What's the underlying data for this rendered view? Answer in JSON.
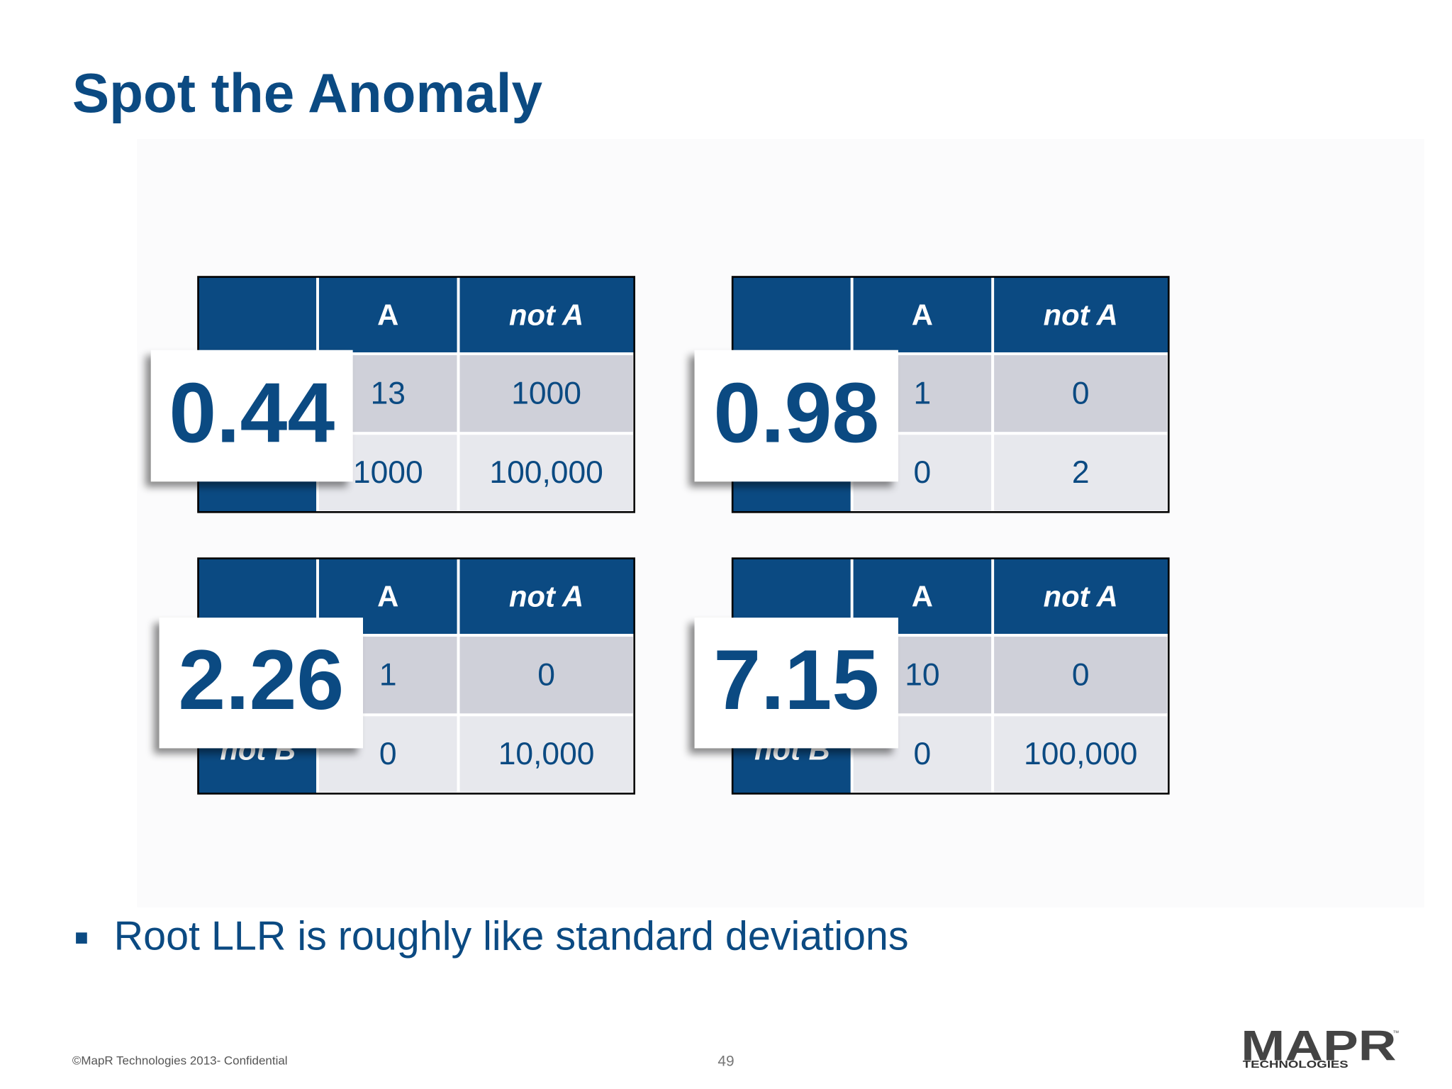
{
  "header": {
    "title": "Spot the Anomaly"
  },
  "tables": [
    {
      "score": "0.44",
      "columns": [
        "A",
        "not A"
      ],
      "rows": [
        [
          "13",
          "1000"
        ],
        [
          "1000",
          "100,000"
        ]
      ]
    },
    {
      "score": "0.98",
      "columns": [
        "A",
        "not A"
      ],
      "rows": [
        [
          "1",
          "0"
        ],
        [
          "0",
          "2"
        ]
      ]
    },
    {
      "score": "2.26",
      "columns": [
        "A",
        "not A"
      ],
      "rows": [
        [
          "1",
          "0"
        ],
        [
          "0",
          "10,000"
        ]
      ],
      "partial_label": "not B"
    },
    {
      "score": "7.15",
      "columns": [
        "A",
        "not A"
      ],
      "rows": [
        [
          "10",
          "0"
        ],
        [
          "0",
          "100,000"
        ]
      ],
      "partial_label": "not B"
    }
  ],
  "bullet": "Root LLR is roughly like standard deviations",
  "footer": {
    "copyright": "©MapR Technologies 2013- Confidential",
    "page": "49"
  },
  "logo": {
    "name": "MAPR",
    "sub": "TECHNOLOGIES",
    "tm": "™"
  }
}
